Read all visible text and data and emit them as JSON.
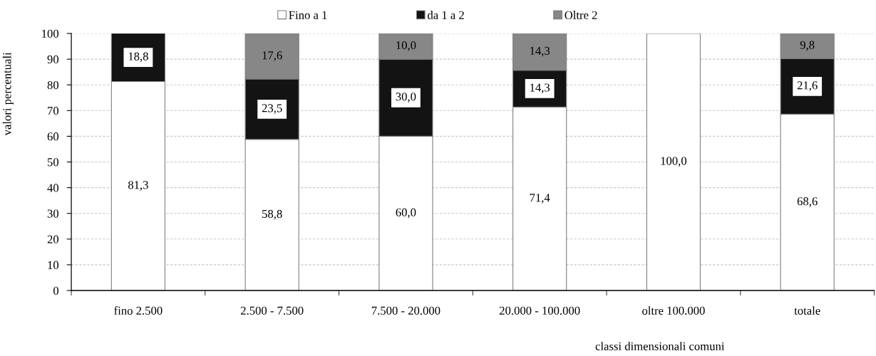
{
  "chart_data": {
    "type": "bar",
    "stacked": true,
    "xlabel": "classi dimensionali comuni",
    "ylabel": "valori percentuali",
    "categories": [
      "fino 2.500",
      "2.500 - 7.500",
      "7.500 - 20.000",
      "20.000 - 100.000",
      "oltre 100.000",
      "totale"
    ],
    "series": [
      {
        "name": "Fino a 1",
        "color": "#ffffff",
        "values": [
          81.3,
          58.8,
          60.0,
          71.4,
          100.0,
          68.6
        ],
        "value_labels": [
          "81,3",
          "58,8",
          "60,0",
          "71,4",
          "100,0",
          "68,6"
        ]
      },
      {
        "name": "da 1 a 2",
        "color": "#131313",
        "values": [
          18.8,
          23.5,
          30.0,
          14.3,
          null,
          21.6
        ],
        "value_labels": [
          "18,8",
          "23,5",
          "30,0",
          "14,3",
          null,
          "21,6"
        ]
      },
      {
        "name": "Oltre 2",
        "color": "#878787",
        "values": [
          null,
          17.6,
          10.0,
          14.3,
          null,
          9.8
        ],
        "value_labels": [
          null,
          "17,6",
          "10,0",
          "14,3",
          null,
          "9,8"
        ]
      }
    ],
    "ylim": [
      0,
      100
    ],
    "yticks": [
      0,
      10,
      20,
      30,
      40,
      50,
      60,
      70,
      80,
      90,
      100
    ],
    "grid": "y",
    "legend": "top"
  }
}
